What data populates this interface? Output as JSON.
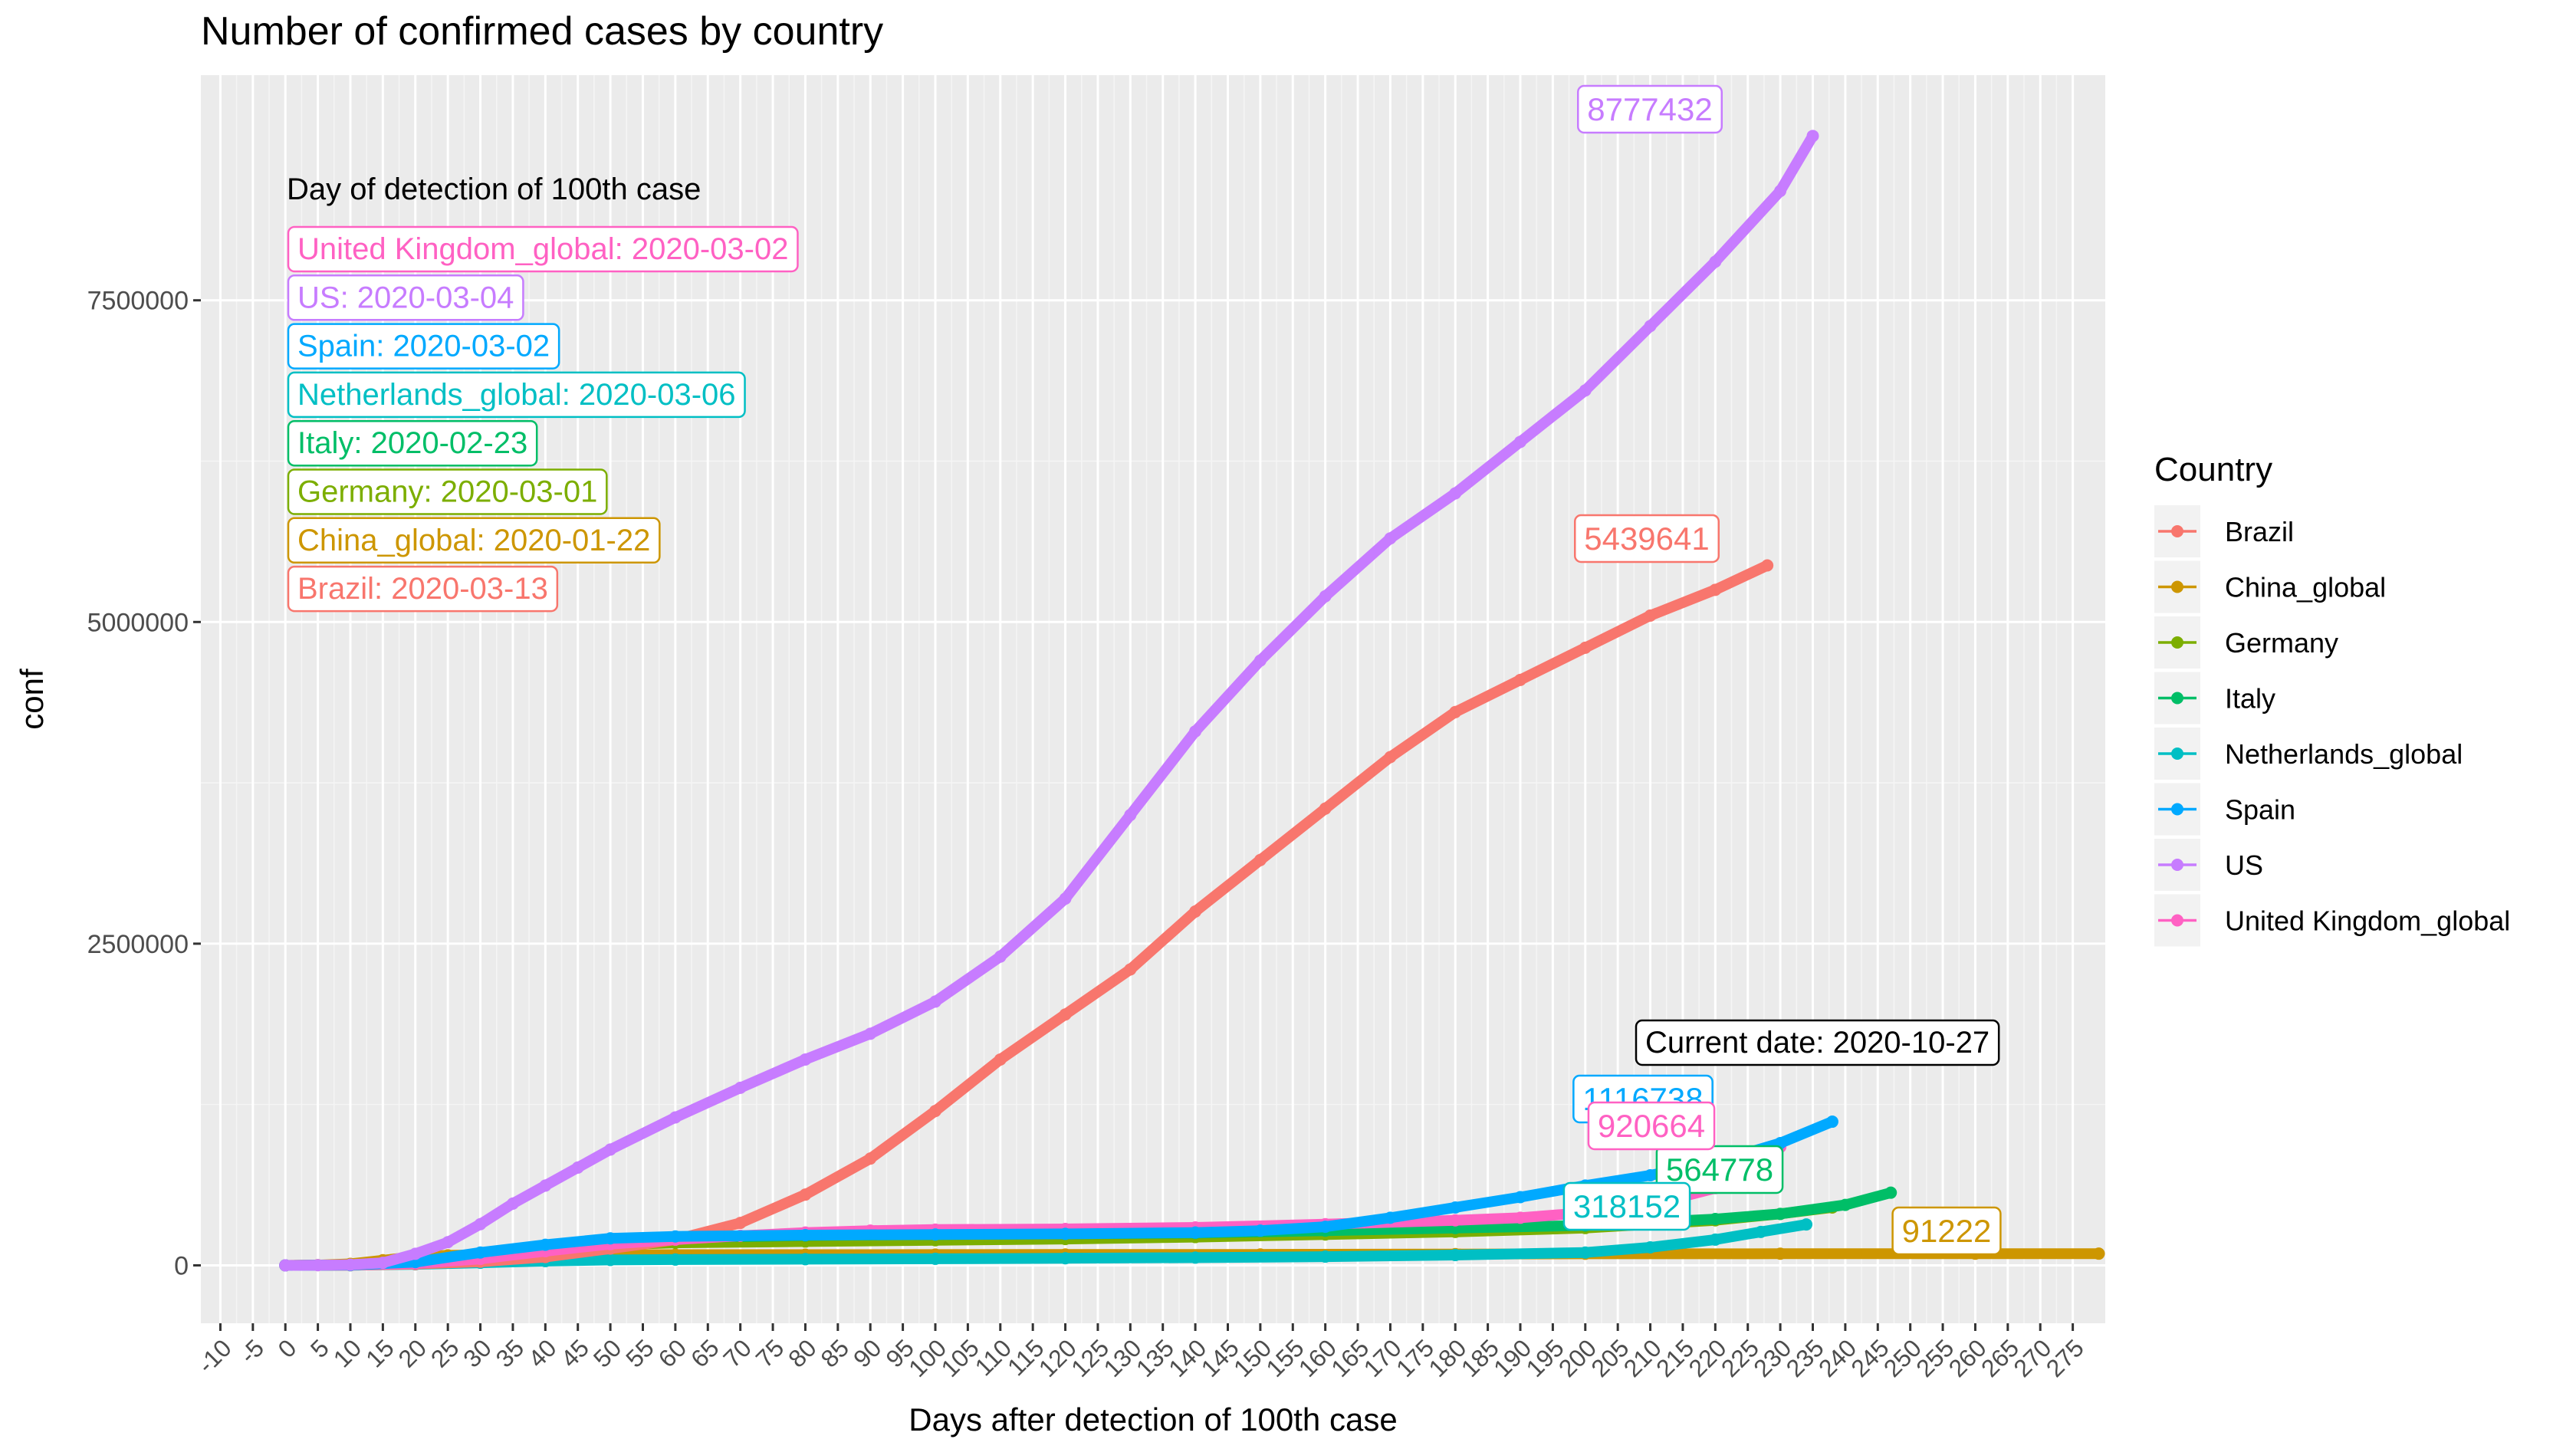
{
  "chart_data": {
    "type": "line",
    "title": "Number of confirmed cases by country",
    "xlabel": "Days after detection of 100th case",
    "ylabel": "conf",
    "xlim": [
      -13,
      280
    ],
    "ylim": [
      -450000,
      9250000
    ],
    "x_ticks": [
      -10,
      -5,
      0,
      5,
      10,
      15,
      20,
      25,
      30,
      35,
      40,
      45,
      50,
      55,
      60,
      65,
      70,
      75,
      80,
      85,
      90,
      95,
      100,
      105,
      110,
      115,
      120,
      125,
      130,
      135,
      140,
      145,
      150,
      155,
      160,
      165,
      170,
      175,
      180,
      185,
      190,
      195,
      200,
      205,
      210,
      215,
      220,
      225,
      230,
      235,
      240,
      245,
      250,
      255,
      260,
      265,
      270,
      275
    ],
    "x_tick_labels": [
      "-10",
      "-5",
      "0",
      "5",
      "10",
      "15",
      "20",
      "25",
      "30",
      "35",
      "40",
      "45",
      "50",
      "55",
      "60",
      "65",
      "70",
      "75",
      "80",
      "85",
      "90",
      "95",
      "100",
      "105",
      "110",
      "115",
      "120",
      "125",
      "130",
      "135",
      "140",
      "145",
      "150",
      "155",
      "160",
      "165",
      "170",
      "175",
      "180",
      "185",
      "190",
      "195",
      "200",
      "205",
      "210",
      "215",
      "220",
      "225",
      "230",
      "235",
      "240",
      "245",
      "250",
      "255",
      "260",
      "265",
      "270",
      "275"
    ],
    "y_ticks": [
      0,
      2500000,
      5000000,
      7500000
    ],
    "y_tick_labels": [
      "0",
      "2500000",
      "5000000",
      "7500000"
    ],
    "grid": true,
    "legend": {
      "title": "Country",
      "placement": "right",
      "entries": [
        "Brazil",
        "China_global",
        "Germany",
        "Italy",
        "Netherlands_global",
        "Spain",
        "US",
        "United Kingdom_global"
      ]
    },
    "detection_box": {
      "heading": "Day of detection of 100th case",
      "entries": [
        {
          "text": "United Kingdom_global: 2020-03-02",
          "color": "#FF61C3"
        },
        {
          "text": "US: 2020-03-04",
          "color": "#C77CFF"
        },
        {
          "text": "Spain: 2020-03-02",
          "color": "#00A9FF"
        },
        {
          "text": "Netherlands_global: 2020-03-06",
          "color": "#00BFC4"
        },
        {
          "text": "Italy: 2020-02-23",
          "color": "#00BE67"
        },
        {
          "text": "Germany: 2020-03-01",
          "color": "#7CAE00"
        },
        {
          "text": "China_global: 2020-01-22",
          "color": "#CD9600"
        },
        {
          "text": "Brazil: 2020-03-13",
          "color": "#F8766D"
        }
      ]
    },
    "current_date_label": "Current date: 2020-10-27",
    "series": [
      {
        "name": "Brazil",
        "color": "#F8766D",
        "end_label": "5439641",
        "points": [
          [
            0,
            100
          ],
          [
            10,
            1500
          ],
          [
            20,
            10000
          ],
          [
            30,
            28000
          ],
          [
            40,
            65000
          ],
          [
            50,
            130000
          ],
          [
            60,
            200000
          ],
          [
            70,
            330000
          ],
          [
            80,
            550000
          ],
          [
            90,
            830000
          ],
          [
            100,
            1200000
          ],
          [
            110,
            1600000
          ],
          [
            120,
            1950000
          ],
          [
            130,
            2300000
          ],
          [
            140,
            2750000
          ],
          [
            150,
            3150000
          ],
          [
            160,
            3550000
          ],
          [
            170,
            3950000
          ],
          [
            180,
            4300000
          ],
          [
            190,
            4550000
          ],
          [
            200,
            4800000
          ],
          [
            210,
            5050000
          ],
          [
            220,
            5250000
          ],
          [
            228,
            5439641
          ]
        ]
      },
      {
        "name": "China_global",
        "color": "#CD9600",
        "end_label": "91222",
        "points": [
          [
            0,
            100
          ],
          [
            5,
            2000
          ],
          [
            10,
            12000
          ],
          [
            15,
            40000
          ],
          [
            20,
            68000
          ],
          [
            25,
            78000
          ],
          [
            30,
            81000
          ],
          [
            40,
            82500
          ],
          [
            60,
            83000
          ],
          [
            80,
            83500
          ],
          [
            100,
            84000
          ],
          [
            120,
            84500
          ],
          [
            150,
            85000
          ],
          [
            180,
            88000
          ],
          [
            200,
            90000
          ],
          [
            230,
            90600
          ],
          [
            260,
            91000
          ],
          [
            279,
            91222
          ]
        ]
      },
      {
        "name": "Germany",
        "color": "#7CAE00",
        "end_label": "",
        "points": [
          [
            0,
            100
          ],
          [
            10,
            3000
          ],
          [
            20,
            25000
          ],
          [
            30,
            75000
          ],
          [
            40,
            130000
          ],
          [
            50,
            160000
          ],
          [
            60,
            175000
          ],
          [
            80,
            185000
          ],
          [
            100,
            195000
          ],
          [
            120,
            205000
          ],
          [
            140,
            220000
          ],
          [
            160,
            240000
          ],
          [
            180,
            260000
          ],
          [
            200,
            290000
          ],
          [
            220,
            350000
          ],
          [
            230,
            400000
          ],
          [
            238,
            450000
          ]
        ]
      },
      {
        "name": "Italy",
        "color": "#00BE67",
        "end_label": "564778",
        "points": [
          [
            0,
            100
          ],
          [
            10,
            3000
          ],
          [
            20,
            25000
          ],
          [
            30,
            80000
          ],
          [
            40,
            140000
          ],
          [
            50,
            190000
          ],
          [
            60,
            215000
          ],
          [
            80,
            232000
          ],
          [
            100,
            240000
          ],
          [
            120,
            245000
          ],
          [
            140,
            252000
          ],
          [
            160,
            270000
          ],
          [
            180,
            290000
          ],
          [
            200,
            310000
          ],
          [
            220,
            360000
          ],
          [
            230,
            400000
          ],
          [
            240,
            470000
          ],
          [
            247,
            564778
          ]
        ]
      },
      {
        "name": "Netherlands_global",
        "color": "#00BFC4",
        "end_label": "318152",
        "points": [
          [
            0,
            100
          ],
          [
            10,
            1000
          ],
          [
            20,
            8000
          ],
          [
            30,
            20000
          ],
          [
            40,
            33000
          ],
          [
            50,
            42000
          ],
          [
            60,
            45000
          ],
          [
            80,
            48000
          ],
          [
            100,
            51000
          ],
          [
            120,
            55000
          ],
          [
            140,
            60000
          ],
          [
            160,
            68000
          ],
          [
            180,
            80000
          ],
          [
            200,
            100000
          ],
          [
            210,
            140000
          ],
          [
            220,
            200000
          ],
          [
            227,
            260000
          ],
          [
            234,
            318152
          ]
        ]
      },
      {
        "name": "Spain",
        "color": "#00A9FF",
        "end_label": "1116738",
        "points": [
          [
            0,
            100
          ],
          [
            10,
            3000
          ],
          [
            20,
            25000
          ],
          [
            30,
            100000
          ],
          [
            40,
            160000
          ],
          [
            50,
            210000
          ],
          [
            60,
            225000
          ],
          [
            80,
            235000
          ],
          [
            100,
            240000
          ],
          [
            120,
            245000
          ],
          [
            140,
            255000
          ],
          [
            150,
            270000
          ],
          [
            160,
            300000
          ],
          [
            170,
            370000
          ],
          [
            180,
            450000
          ],
          [
            190,
            530000
          ],
          [
            200,
            620000
          ],
          [
            210,
            700000
          ],
          [
            220,
            800000
          ],
          [
            230,
            950000
          ],
          [
            238,
            1116738
          ]
        ]
      },
      {
        "name": "US",
        "color": "#C77CFF",
        "end_label": "8777432",
        "points": [
          [
            0,
            100
          ],
          [
            5,
            1500
          ],
          [
            10,
            5000
          ],
          [
            15,
            20000
          ],
          [
            20,
            90000
          ],
          [
            25,
            180000
          ],
          [
            30,
            320000
          ],
          [
            35,
            480000
          ],
          [
            40,
            620000
          ],
          [
            45,
            760000
          ],
          [
            50,
            900000
          ],
          [
            60,
            1150000
          ],
          [
            70,
            1380000
          ],
          [
            80,
            1600000
          ],
          [
            90,
            1800000
          ],
          [
            100,
            2050000
          ],
          [
            110,
            2400000
          ],
          [
            120,
            2850000
          ],
          [
            130,
            3500000
          ],
          [
            140,
            4150000
          ],
          [
            150,
            4700000
          ],
          [
            160,
            5200000
          ],
          [
            170,
            5650000
          ],
          [
            180,
            6000000
          ],
          [
            190,
            6400000
          ],
          [
            200,
            6800000
          ],
          [
            210,
            7300000
          ],
          [
            220,
            7800000
          ],
          [
            230,
            8350000
          ],
          [
            235,
            8777432
          ]
        ]
      },
      {
        "name": "United Kingdom_global",
        "color": "#FF61C3",
        "end_label": "920664",
        "points": [
          [
            0,
            100
          ],
          [
            10,
            2000
          ],
          [
            20,
            15000
          ],
          [
            30,
            50000
          ],
          [
            40,
            110000
          ],
          [
            50,
            165000
          ],
          [
            60,
            200000
          ],
          [
            70,
            230000
          ],
          [
            80,
            255000
          ],
          [
            90,
            270000
          ],
          [
            100,
            278000
          ],
          [
            120,
            283000
          ],
          [
            140,
            295000
          ],
          [
            160,
            320000
          ],
          [
            180,
            350000
          ],
          [
            190,
            370000
          ],
          [
            200,
            410000
          ],
          [
            210,
            470000
          ],
          [
            220,
            600000
          ],
          [
            226,
            780000
          ],
          [
            230,
            920664
          ]
        ]
      }
    ]
  }
}
